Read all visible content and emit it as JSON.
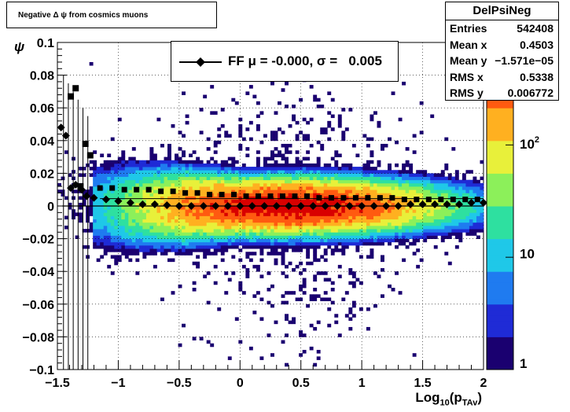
{
  "title": "Negative Δ ψ from cosmics muons",
  "stats": {
    "name": "DelPsiNeg",
    "rows": [
      {
        "label": "Entries",
        "value": "542408"
      },
      {
        "label": "Mean x",
        "value": "0.4503"
      },
      {
        "label": "Mean y",
        "value": "−1.571e−05"
      },
      {
        "label": "RMS x",
        "value": "0.5338"
      },
      {
        "label": "RMS y",
        "value": "0.006772"
      }
    ]
  },
  "legend": {
    "entry": "FF μ = -0.000, σ =   0.005"
  },
  "colors": {
    "marker": "#000000",
    "palette": [
      "#1a0070",
      "#1f2bd6",
      "#1f7bf0",
      "#1fc8e8",
      "#2ee0a0",
      "#8cf05a",
      "#e8f03a",
      "#ffb020",
      "#ff5a10",
      "#d90000"
    ]
  },
  "chart_data": {
    "type": "heatmap",
    "title": "Negative Δ ψ from cosmics muons",
    "xlabel": "Log10(pTAv)",
    "ylabel": "ψ",
    "xlim": [
      -1.5,
      2
    ],
    "ylim": [
      -0.1,
      0.1
    ],
    "x_ticks": [
      "−1.5",
      "−1",
      "−0.5",
      "0",
      "0.5",
      "1",
      "1.5",
      "2"
    ],
    "y_ticks": [
      "−0.1",
      "−0.08",
      "−0.06",
      "−0.04",
      "−0.02",
      "0",
      "0.02",
      "0.04",
      "0.06",
      "0.08",
      "0.1"
    ],
    "z_scale": "log",
    "z_ticks": [
      "1",
      "10",
      "10^2"
    ],
    "grid": true,
    "series": [
      {
        "name": "FF μ",
        "marker": "diamond",
        "x": [
          -1.47,
          -1.43,
          -1.39,
          -1.35,
          -1.3,
          -1.26,
          -1.2,
          -1.1,
          -1.0,
          -0.9,
          -0.8,
          -0.7,
          -0.6,
          -0.5,
          -0.4,
          -0.3,
          -0.2,
          -0.1,
          0.0,
          0.1,
          0.2,
          0.3,
          0.4,
          0.5,
          0.6,
          0.7,
          0.8,
          0.9,
          1.0,
          1.1,
          1.2,
          1.3,
          1.4,
          1.5,
          1.6,
          1.7,
          1.8,
          1.9,
          2.0
        ],
        "y": [
          0.048,
          0.043,
          0.011,
          0.013,
          0.01,
          0.006,
          0.005,
          0.004,
          0.003,
          0.002,
          0.001,
          0.001,
          0.0005,
          0.0,
          0.0,
          0.0,
          0.0,
          0.0,
          0.0,
          0.0,
          0.0,
          0.0,
          0.0,
          0.0,
          0.0,
          0.0,
          0.0,
          0.0,
          0.0,
          0.0,
          0.0,
          0.0,
          0.001,
          0.001,
          0.001,
          0.001,
          0.001,
          0.002,
          0.002
        ]
      },
      {
        "name": "σ",
        "marker": "square",
        "x": [
          -1.39,
          -1.35,
          -1.31,
          -1.27,
          -1.23,
          -1.15,
          -1.05,
          -0.95,
          -0.85,
          -0.75,
          -0.65,
          -0.55,
          -0.45,
          -0.35,
          -0.25,
          -0.15,
          -0.05,
          0.05,
          0.15,
          0.25,
          0.35,
          0.45,
          0.55,
          0.65,
          0.75,
          0.85,
          0.95,
          1.05,
          1.15,
          1.25,
          1.35,
          1.45,
          1.55,
          1.65,
          1.75,
          1.85,
          1.95
        ],
        "y": [
          0.067,
          0.072,
          0.012,
          0.038,
          0.031,
          0.011,
          0.011,
          0.01,
          0.01,
          0.01,
          0.009,
          0.009,
          0.008,
          0.008,
          0.007,
          0.007,
          0.007,
          0.006,
          0.006,
          0.006,
          0.006,
          0.006,
          0.006,
          0.005,
          0.005,
          0.005,
          0.005,
          0.005,
          0.005,
          0.005,
          0.004,
          0.004,
          0.004,
          0.004,
          0.004,
          0.004,
          0.004
        ]
      }
    ],
    "density_profile": {
      "peak_x": 0.4,
      "core_sigma_x": 0.55,
      "core_sigma_y": 0.0068,
      "peak_count": 800
    }
  }
}
